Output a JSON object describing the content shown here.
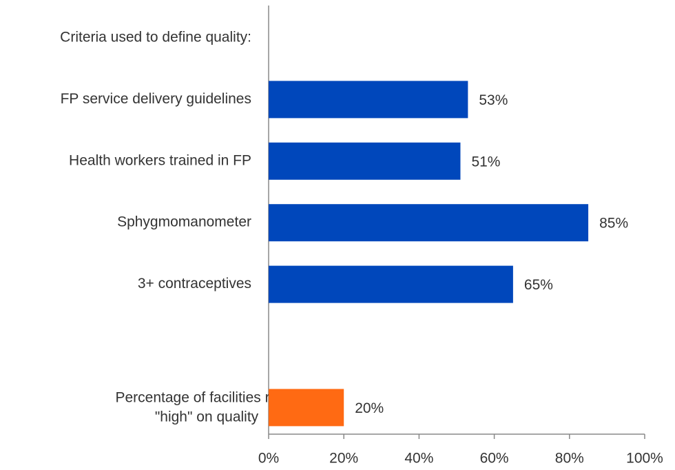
{
  "chart_data": {
    "type": "bar",
    "orientation": "horizontal",
    "heading": "Criteria used to define quality:",
    "categories": [
      "FP service delivery guidelines",
      "Health workers trained in FP",
      "Sphygmomanometer",
      "3+ contraceptives",
      "Percentage of facilities rated\n\"high\" on quality"
    ],
    "values": [
      53,
      51,
      85,
      65,
      20
    ],
    "value_labels": [
      "53%",
      "51%",
      "85%",
      "65%",
      "20%"
    ],
    "colors": [
      "#0047bb",
      "#0047bb",
      "#0047bb",
      "#0047bb",
      "#ff6a13"
    ],
    "xlim": [
      0,
      100
    ],
    "xticks": [
      {
        "value": 0,
        "label": "0%"
      },
      {
        "value": 20,
        "label": "20%"
      },
      {
        "value": 40,
        "label": "40%"
      },
      {
        "value": 60,
        "label": "60%"
      },
      {
        "value": 80,
        "label": "80%"
      },
      {
        "value": 100,
        "label": "100%"
      }
    ],
    "grid": false
  }
}
